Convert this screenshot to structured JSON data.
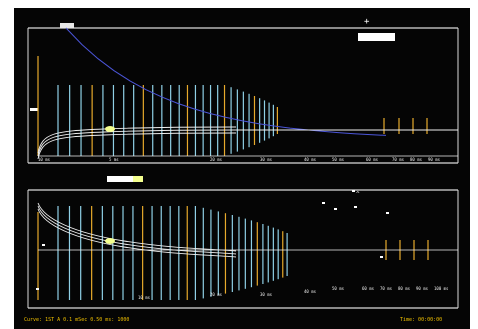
{
  "screen": {
    "background": "#050505",
    "frame_color": "#d9d9d9",
    "accent_blue": "#8fd0e6",
    "accent_orange": "#e7a92b",
    "trace_color": "#f0f0f0",
    "asymptote_color": "#4b55d8",
    "highlight_color": "#f4ff8f"
  },
  "upper_panel": {
    "tick_labels": [
      "10 ms",
      "5 ms",
      "20 ms",
      "30 ms",
      "40 ms",
      "50 ms",
      "60 ms",
      "70 ms",
      "80 ms",
      "90 ms"
    ]
  },
  "lower_panel": {
    "tick_labels": [
      "10 ms",
      "20 ms",
      "30 ms",
      "40 ms",
      "50 ms",
      "60 ms",
      "70 ms",
      "80 ms",
      "90 ms",
      "100 ms"
    ]
  },
  "status_bar": {
    "left_text": "Curve: 1ST A  0.1 mSec  0.50  ms: 1000",
    "right_text": "Time: 00:00:00"
  }
}
